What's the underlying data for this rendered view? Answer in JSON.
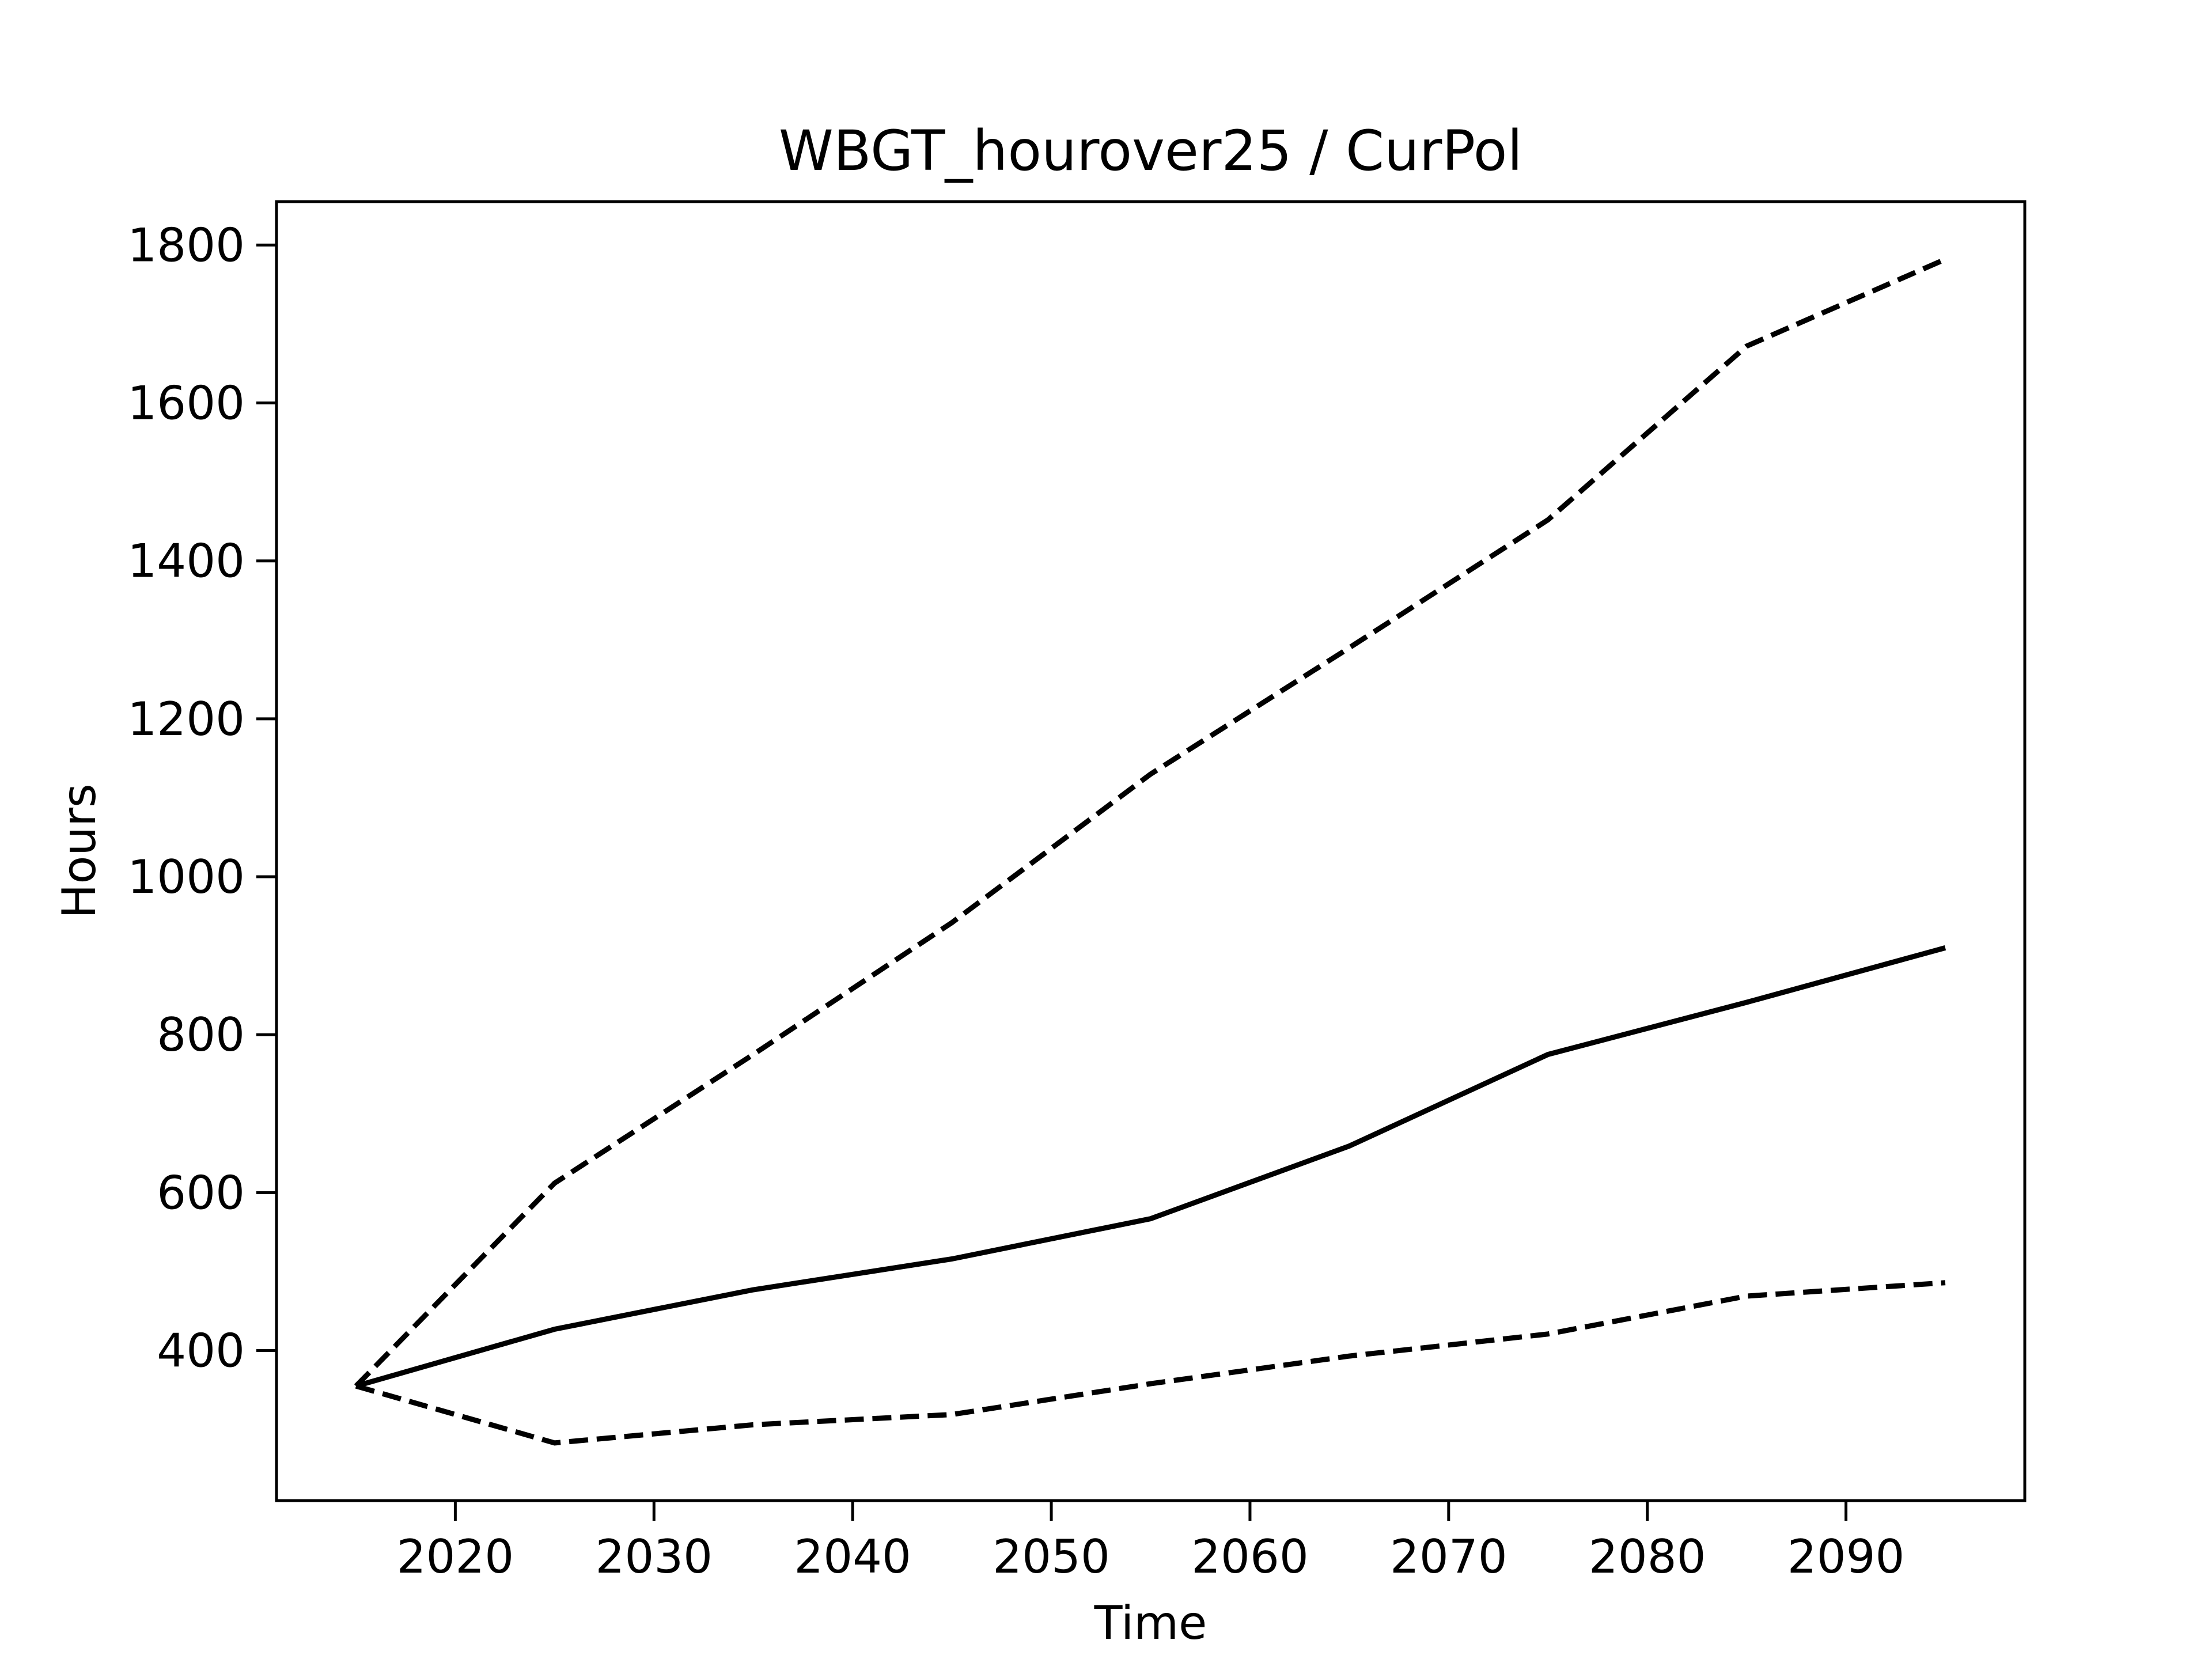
{
  "chart_data": {
    "type": "line",
    "title": "WBGT_hourover25 / CurPol",
    "xlabel": "Time",
    "ylabel": "Hours",
    "x": [
      2015,
      2025,
      2035,
      2045,
      2055,
      2065,
      2075,
      2085,
      2095
    ],
    "xlim": [
      2011,
      2099
    ],
    "ylim": [
      210,
      1855
    ],
    "xticks": [
      2020,
      2030,
      2040,
      2050,
      2060,
      2070,
      2080,
      2090
    ],
    "yticks": [
      400,
      600,
      800,
      1000,
      1200,
      1400,
      1600,
      1800
    ],
    "grid": false,
    "series": [
      {
        "style": "dashed",
        "color": "#000000",
        "values": [
          355,
          612,
          775,
          942,
          1130,
          1290,
          1452,
          1672,
          1782
        ]
      },
      {
        "style": "solid",
        "color": "#000000",
        "values": [
          355,
          427,
          477,
          516,
          567,
          659,
          775,
          841,
          910
        ]
      },
      {
        "style": "dashed",
        "color": "#000000",
        "values": [
          355,
          283,
          306,
          319,
          358,
          393,
          421,
          469,
          486
        ]
      }
    ]
  }
}
